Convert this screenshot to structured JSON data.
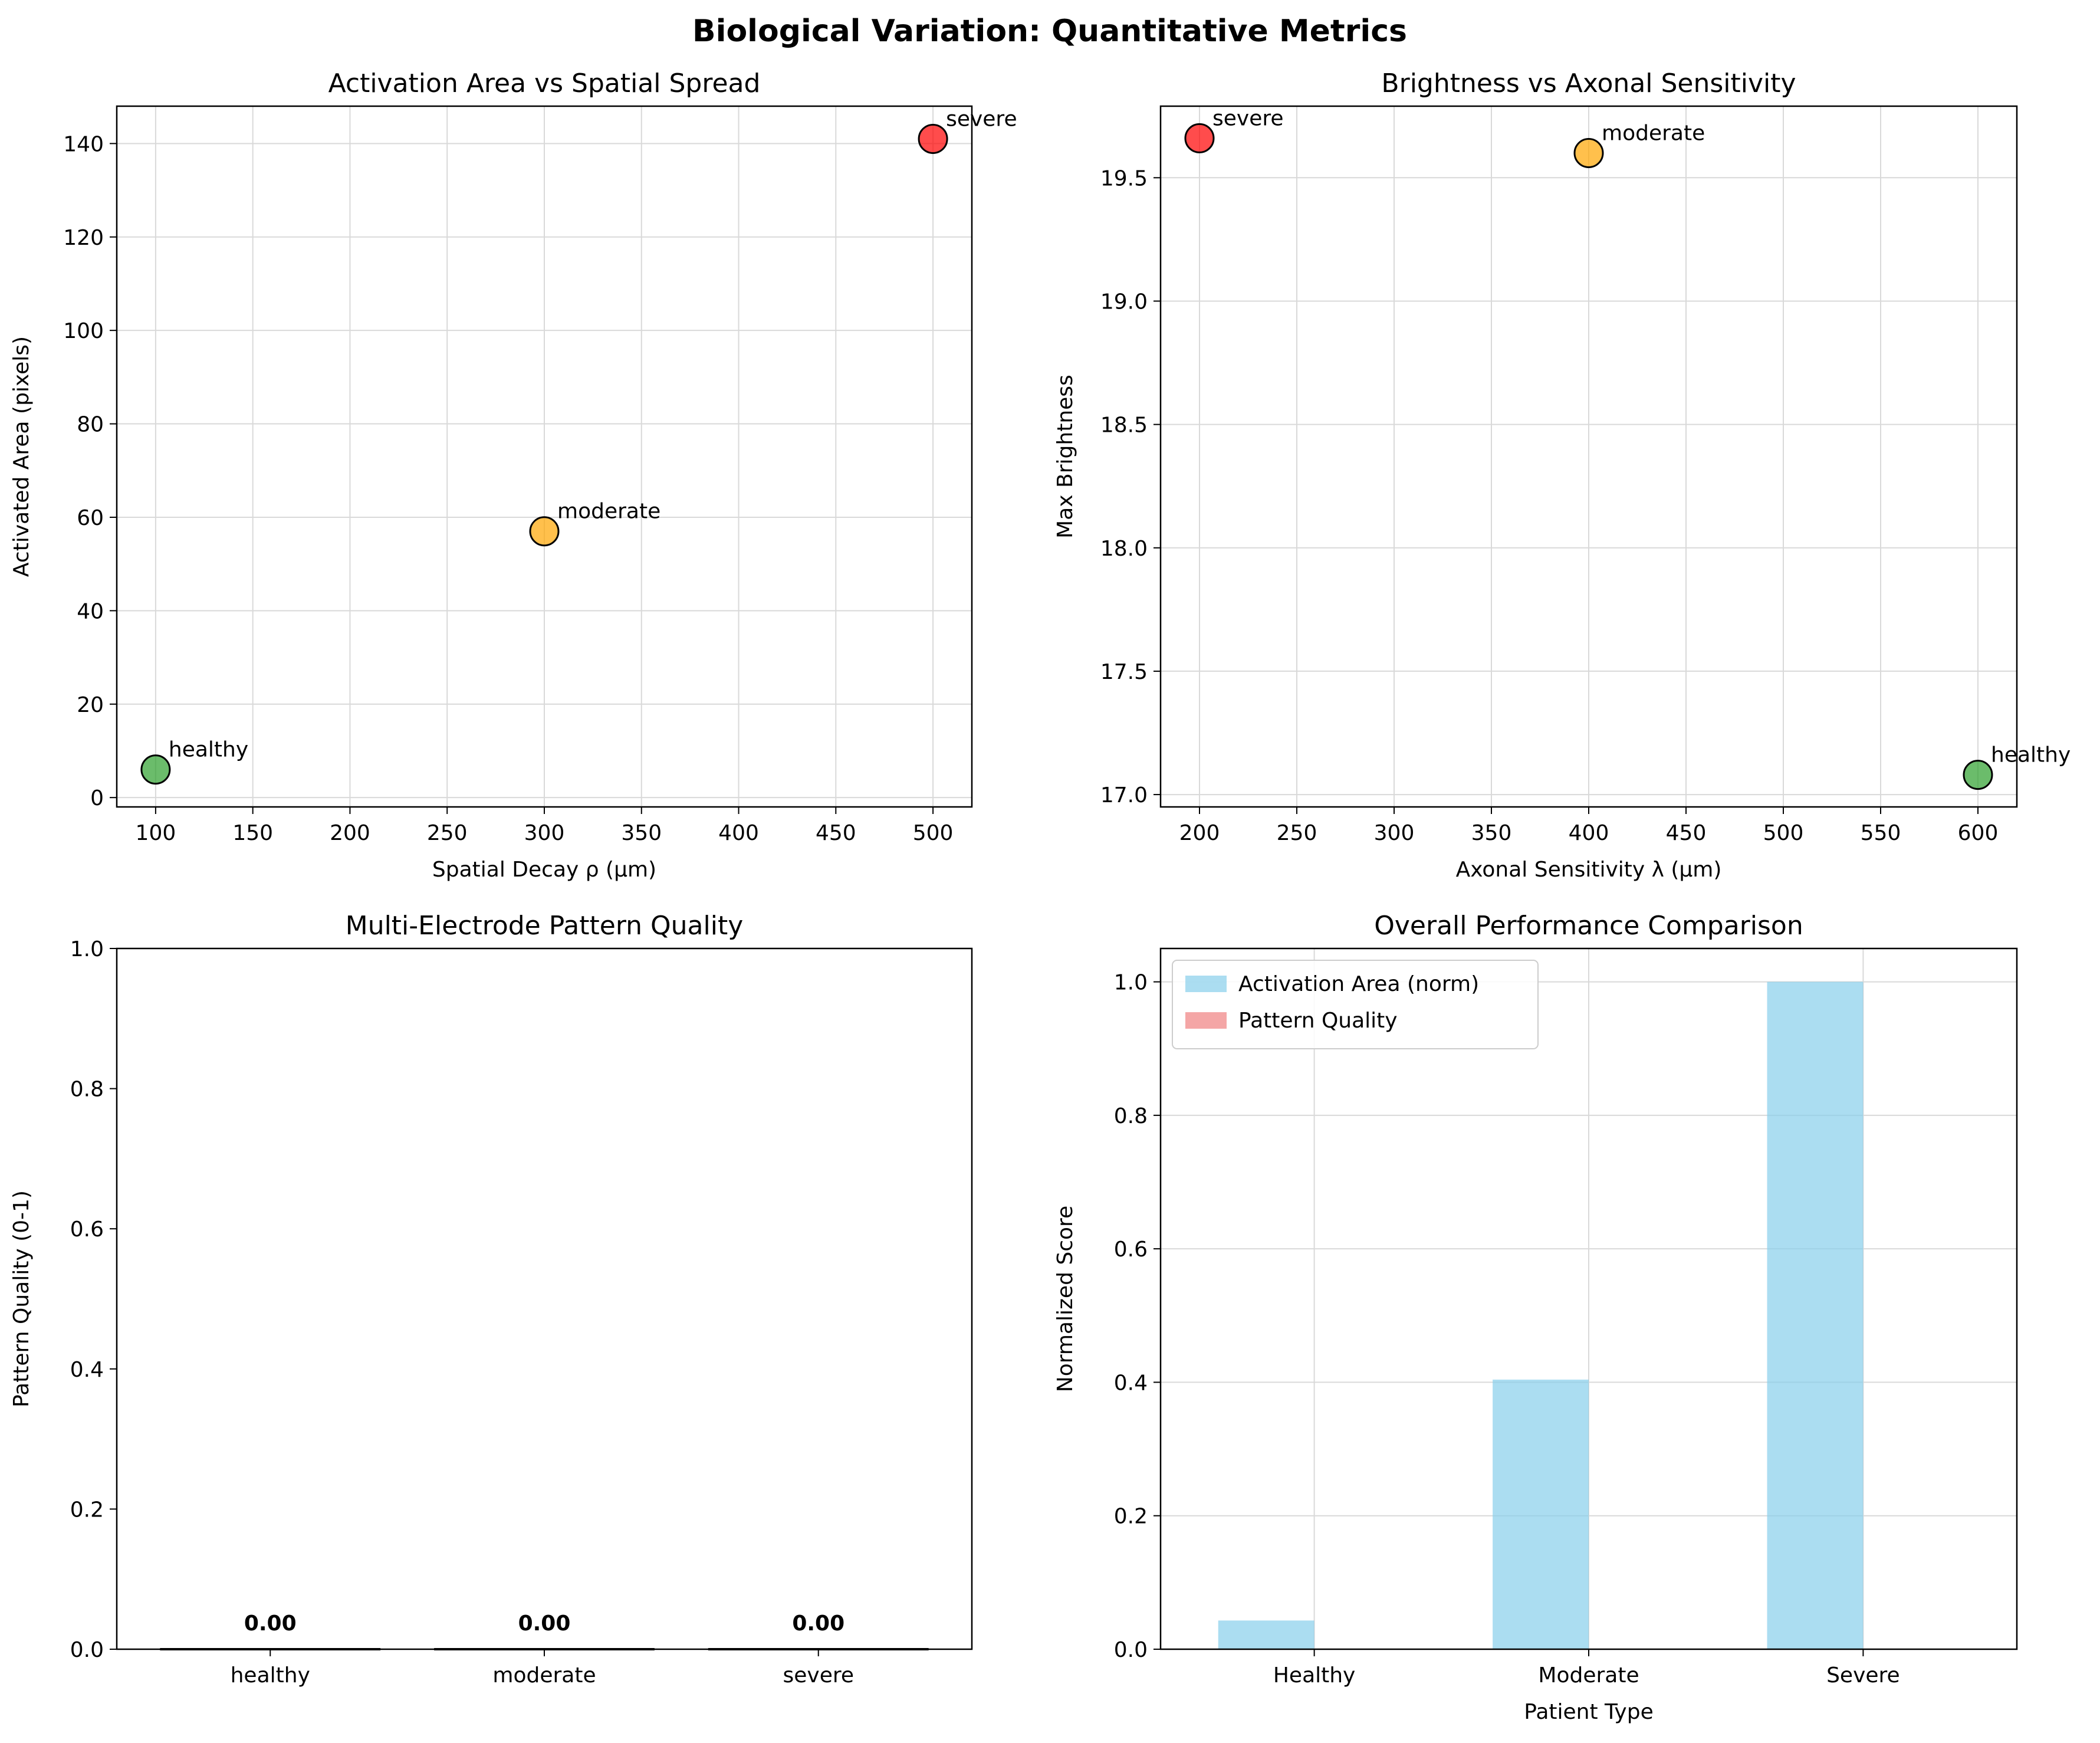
{
  "suptitle": "Biological Variation: Quantitative Metrics",
  "colors": {
    "healthy": "#2ca02c",
    "moderate": "#ffa500",
    "severe": "#ff0000",
    "activation": "#87ceeb",
    "quality": "#f08080",
    "grid": "#d9d9d9"
  },
  "chart_data": [
    {
      "id": "p1",
      "type": "scatter",
      "title": "Activation Area vs Spatial Spread",
      "xlabel": "Spatial Decay ρ (μm)",
      "ylabel": "Activated Area (pixels)",
      "xlim": [
        80,
        520
      ],
      "ylim": [
        -2,
        148
      ],
      "xticks": [
        100,
        150,
        200,
        250,
        300,
        350,
        400,
        450,
        500
      ],
      "yticks": [
        0,
        20,
        40,
        60,
        80,
        100,
        120,
        140
      ],
      "grid": true,
      "points": [
        {
          "label": "healthy",
          "x": 100,
          "y": 6,
          "color_key": "healthy"
        },
        {
          "label": "moderate",
          "x": 300,
          "y": 57,
          "color_key": "moderate"
        },
        {
          "label": "severe",
          "x": 500,
          "y": 141,
          "color_key": "severe"
        }
      ]
    },
    {
      "id": "p2",
      "type": "scatter",
      "title": "Brightness vs Axonal Sensitivity",
      "xlabel": "Axonal Sensitivity λ (μm)",
      "ylabel": "Max Brightness",
      "xlim": [
        180,
        620
      ],
      "ylim": [
        16.95,
        19.79
      ],
      "xticks": [
        200,
        250,
        300,
        350,
        400,
        450,
        500,
        550,
        600
      ],
      "yticks": [
        17.0,
        17.5,
        18.0,
        18.5,
        19.0,
        19.5
      ],
      "ytick_decimals": 1,
      "grid": true,
      "points": [
        {
          "label": "severe",
          "x": 200,
          "y": 19.66,
          "color_key": "severe"
        },
        {
          "label": "moderate",
          "x": 400,
          "y": 19.6,
          "color_key": "moderate"
        },
        {
          "label": "healthy",
          "x": 600,
          "y": 17.08,
          "color_key": "healthy"
        }
      ]
    },
    {
      "id": "p3",
      "type": "bar",
      "title": "Multi-Electrode Pattern Quality",
      "xlabel": "",
      "ylabel": "Pattern Quality (0-1)",
      "categories": [
        "healthy",
        "moderate",
        "severe"
      ],
      "values": [
        0.0,
        0.0,
        0.0
      ],
      "value_labels": [
        "0.00",
        "0.00",
        "0.00"
      ],
      "ylim": [
        0,
        1.0
      ],
      "yticks": [
        0.0,
        0.2,
        0.4,
        0.6,
        0.8,
        1.0
      ],
      "ytick_decimals": 1,
      "grid": false
    },
    {
      "id": "p4",
      "type": "bar",
      "title": "Overall Performance Comparison",
      "xlabel": "Patient Type",
      "ylabel": "Normalized Score",
      "categories": [
        "Healthy",
        "Moderate",
        "Severe"
      ],
      "ylim": [
        0,
        1.05
      ],
      "yticks": [
        0.0,
        0.2,
        0.4,
        0.6,
        0.8,
        1.0
      ],
      "ytick_decimals": 1,
      "grid": true,
      "legend_position": "top-left",
      "series": [
        {
          "name": "Activation Area (norm)",
          "values": [
            0.043,
            0.404,
            1.0
          ],
          "color_key": "activation"
        },
        {
          "name": "Pattern Quality",
          "values": [
            0.0,
            0.0,
            0.0
          ],
          "color_key": "quality"
        }
      ]
    }
  ]
}
